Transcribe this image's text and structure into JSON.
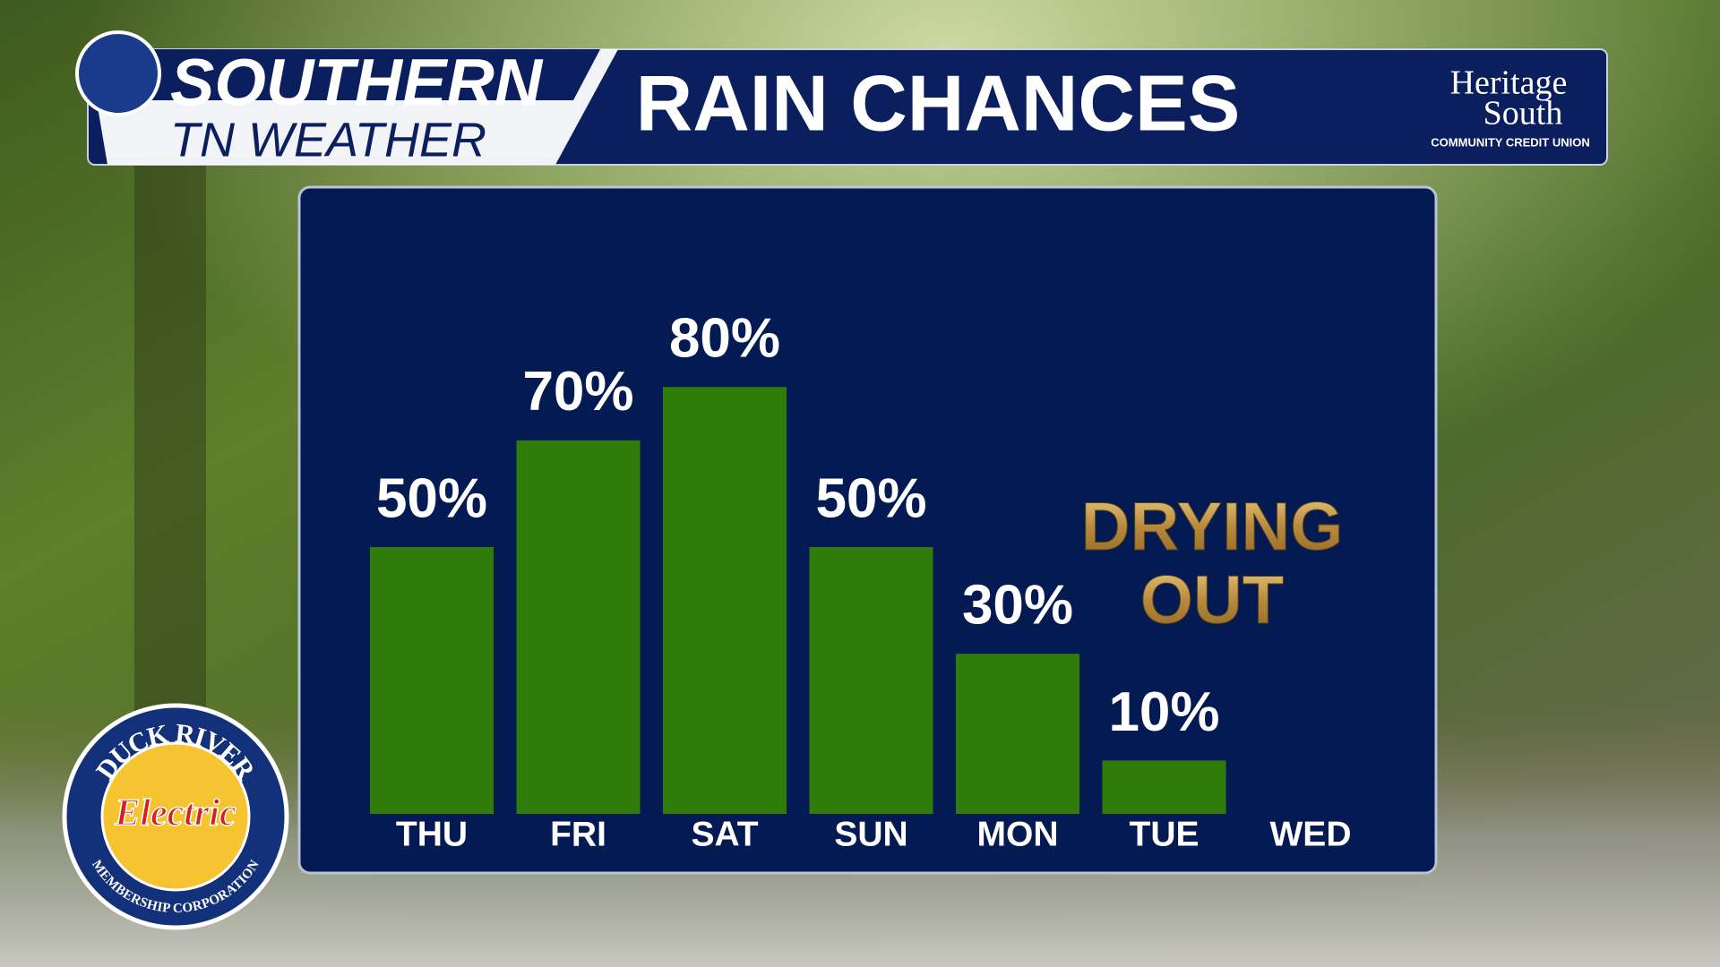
{
  "chart_data": {
    "type": "bar",
    "title": "RAIN CHANCES",
    "categories": [
      "THU",
      "FRI",
      "SAT",
      "SUN",
      "MON",
      "TUE",
      "WED"
    ],
    "values": [
      50,
      70,
      80,
      50,
      30,
      10,
      null
    ],
    "value_labels": [
      "50%",
      "70%",
      "80%",
      "50%",
      "30%",
      "10%",
      null
    ],
    "color": "#2f7c0b",
    "annotation": [
      "DRYING",
      "OUT"
    ]
  },
  "branding": {
    "show": [
      "SOUTHERN",
      "TN WEATHER"
    ],
    "sponsor": [
      "Heritage",
      "South",
      "COMMUNITY CREDIT UNION"
    ],
    "seal": [
      "DUCK RIVER",
      "Electric",
      "MEMBERSHIP CORPORATION"
    ]
  }
}
